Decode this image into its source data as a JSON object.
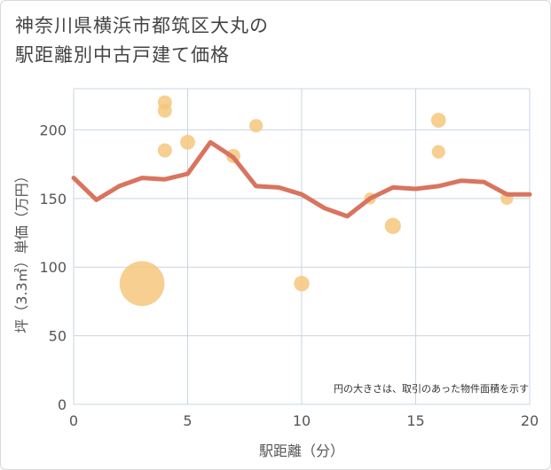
{
  "title_lines": [
    "神奈川県横浜市都筑区大丸の",
    "駅距離別中古戸建て価格"
  ],
  "colors": {
    "line": "#d9745e",
    "bubble": "#f5c77e",
    "grid": "#c9d6e0",
    "plot_bg": "#ffffff"
  },
  "chart_data": {
    "type": "scatter",
    "title": "神奈川県横浜市都筑区大丸の駅距離別中古戸建て価格",
    "xlabel": "駅距離（分）",
    "ylabel": "坪（3.3㎡）単価（万円）",
    "xlim": [
      0,
      20
    ],
    "ylim": [
      0,
      230
    ],
    "x_ticks": [
      0,
      5,
      10,
      15,
      20
    ],
    "y_ticks": [
      0,
      50,
      100,
      150,
      200
    ],
    "grid": true,
    "note": "円の大きさは、取引のあった物件面積を示す",
    "series": [
      {
        "type": "scatter",
        "points": [
          {
            "x": 3,
            "y": 88,
            "size": 10
          },
          {
            "x": 4,
            "y": 220,
            "size": 1
          },
          {
            "x": 4,
            "y": 214,
            "size": 1
          },
          {
            "x": 4,
            "y": 185,
            "size": 1
          },
          {
            "x": 5,
            "y": 191,
            "size": 1.1
          },
          {
            "x": 7,
            "y": 181,
            "size": 1
          },
          {
            "x": 8,
            "y": 203,
            "size": 0.9
          },
          {
            "x": 10,
            "y": 88,
            "size": 1.2
          },
          {
            "x": 13,
            "y": 150,
            "size": 0.7
          },
          {
            "x": 14,
            "y": 130,
            "size": 1.3
          },
          {
            "x": 16,
            "y": 207,
            "size": 1.1
          },
          {
            "x": 16,
            "y": 184,
            "size": 0.9
          },
          {
            "x": 19,
            "y": 150,
            "size": 0.8
          }
        ]
      },
      {
        "type": "line",
        "x": [
          0,
          1,
          2,
          3,
          4,
          5,
          6,
          7,
          8,
          9,
          10,
          11,
          12,
          13,
          14,
          15,
          16,
          17,
          18,
          19,
          20
        ],
        "values": [
          165,
          149,
          159,
          165,
          164,
          168,
          191,
          180,
          159,
          158,
          153,
          143,
          137,
          150,
          158,
          157,
          159,
          163,
          162,
          153,
          153
        ]
      }
    ]
  }
}
